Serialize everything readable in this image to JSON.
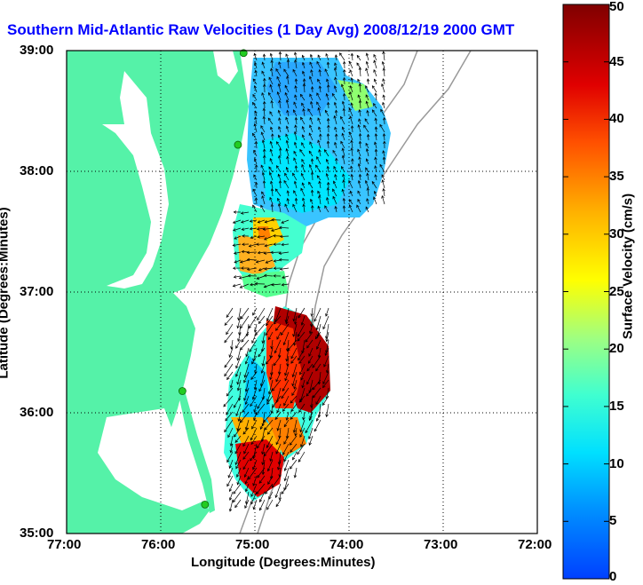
{
  "title": "Southern Mid-Atlantic Raw Velocities (1 Day Avg) 2008/12/19 2000 GMT",
  "x_label": "Longitude (Degrees:Minutes)",
  "y_label": "Latitude (Degrees:Minutes)",
  "colorbar_label": "Surface Velocity (cm/s)",
  "x_ticks": [
    "77:00",
    "76:00",
    "75:00",
    "74:00",
    "73:00",
    "72:00"
  ],
  "y_ticks": [
    "39:00",
    "38:00",
    "37:00",
    "36:00",
    "35:00"
  ],
  "colorbar_ticks": [
    "50",
    "45",
    "40",
    "35",
    "30",
    "25",
    "20",
    "15",
    "10",
    "5",
    "0"
  ],
  "colors": {
    "title": "#0000ff",
    "land": "#55f2a8",
    "water": "#ffffff",
    "bathymetry": "#999999",
    "station": "#22cc22",
    "vector": "#000000"
  },
  "map_data": {
    "lon_range": [
      -77,
      -72
    ],
    "lat_range": [
      35,
      39
    ],
    "velocity_range_cms": [
      0,
      50
    ],
    "grid": "dotted",
    "stations": [
      {
        "lon": -75.12,
        "lat": 38.98
      },
      {
        "lon": -75.18,
        "lat": 38.22
      },
      {
        "lon": -75.77,
        "lat": 36.18
      },
      {
        "lon": -75.53,
        "lat": 35.24
      }
    ]
  }
}
